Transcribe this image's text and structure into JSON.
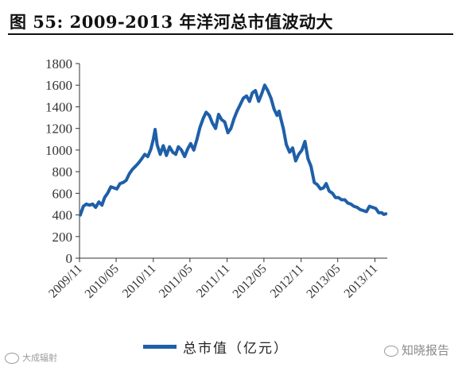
{
  "figure": {
    "title": "图  55:  2009-2013 年洋河总市值波动大"
  },
  "legend": {
    "label": "总市值（亿元）",
    "color": "#1f5fa8"
  },
  "watermarks": {
    "left": "大成辐射",
    "right": "知晓报告"
  },
  "chart_data": {
    "type": "line",
    "title": "",
    "xlabel": "",
    "ylabel": "",
    "ylim": [
      0,
      1800
    ],
    "yticks": [
      0,
      200,
      400,
      600,
      800,
      1000,
      1200,
      1400,
      1600,
      1800
    ],
    "xlim": [
      "2009-11",
      "2014-01"
    ],
    "xticks": [
      "2009/11",
      "2010/05",
      "2010/11",
      "2011/05",
      "2011/11",
      "2012/05",
      "2012/11",
      "2013/05",
      "2013/11"
    ],
    "grid": false,
    "legend_position": "bottom",
    "series": [
      {
        "name": "总市值（亿元）",
        "color": "#1f5fa8",
        "x": [
          "2009-11-05",
          "2009-11-20",
          "2009-12-05",
          "2009-12-20",
          "2010-01-05",
          "2010-01-20",
          "2010-02-05",
          "2010-02-20",
          "2010-03-05",
          "2010-03-20",
          "2010-04-05",
          "2010-04-20",
          "2010-05-05",
          "2010-05-20",
          "2010-06-05",
          "2010-06-20",
          "2010-07-05",
          "2010-07-20",
          "2010-08-05",
          "2010-08-20",
          "2010-09-05",
          "2010-09-20",
          "2010-10-05",
          "2010-10-20",
          "2010-11-01",
          "2010-11-10",
          "2010-11-20",
          "2010-12-05",
          "2010-12-20",
          "2011-01-05",
          "2011-01-20",
          "2011-02-05",
          "2011-02-20",
          "2011-03-05",
          "2011-03-20",
          "2011-04-05",
          "2011-04-20",
          "2011-05-05",
          "2011-05-20",
          "2011-06-05",
          "2011-06-20",
          "2011-07-05",
          "2011-07-20",
          "2011-08-05",
          "2011-08-20",
          "2011-09-05",
          "2011-09-20",
          "2011-10-05",
          "2011-10-20",
          "2011-11-05",
          "2011-11-20",
          "2011-12-05",
          "2011-12-20",
          "2012-01-05",
          "2012-01-20",
          "2012-02-05",
          "2012-02-20",
          "2012-03-05",
          "2012-03-20",
          "2012-04-05",
          "2012-04-20",
          "2012-05-05",
          "2012-05-20",
          "2012-06-05",
          "2012-06-20",
          "2012-07-05",
          "2012-07-15",
          "2012-07-25",
          "2012-08-05",
          "2012-08-20",
          "2012-09-05",
          "2012-09-20",
          "2012-10-05",
          "2012-10-20",
          "2012-11-05",
          "2012-11-20",
          "2012-12-05",
          "2012-12-20",
          "2013-01-05",
          "2013-01-20",
          "2013-02-05",
          "2013-02-20",
          "2013-03-05",
          "2013-03-20",
          "2013-04-05",
          "2013-04-20",
          "2013-05-05",
          "2013-05-20",
          "2013-06-05",
          "2013-06-20",
          "2013-07-05",
          "2013-07-20",
          "2013-08-05",
          "2013-08-20",
          "2013-09-05",
          "2013-09-20",
          "2013-10-05",
          "2013-10-20",
          "2013-11-05",
          "2013-11-20",
          "2013-12-05",
          "2013-12-15",
          "2013-12-25"
        ],
        "y": [
          400,
          480,
          500,
          490,
          500,
          470,
          520,
          490,
          560,
          600,
          660,
          650,
          640,
          690,
          700,
          720,
          780,
          820,
          850,
          880,
          920,
          960,
          940,
          1010,
          1100,
          1190,
          1050,
          960,
          1040,
          950,
          1030,
          980,
          960,
          1030,
          1000,
          940,
          1010,
          1060,
          1000,
          1100,
          1210,
          1290,
          1350,
          1320,
          1250,
          1200,
          1330,
          1280,
          1260,
          1160,
          1200,
          1290,
          1360,
          1420,
          1480,
          1500,
          1450,
          1530,
          1550,
          1450,
          1520,
          1600,
          1550,
          1480,
          1380,
          1320,
          1360,
          1280,
          1200,
          1050,
          980,
          1020,
          900,
          960,
          1000,
          1080,
          920,
          850,
          700,
          680,
          640,
          650,
          690,
          620,
          600,
          560,
          560,
          540,
          540,
          510,
          500,
          480,
          470,
          450,
          440,
          430,
          480,
          470,
          460,
          420,
          420,
          405,
          410
        ]
      }
    ]
  }
}
